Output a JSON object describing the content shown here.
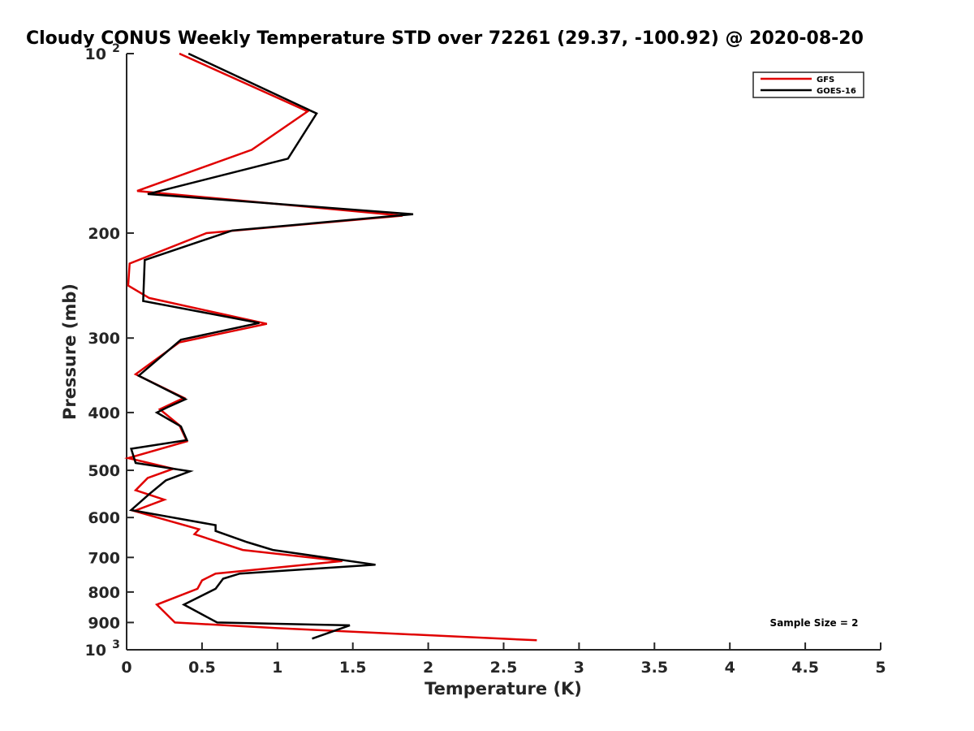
{
  "chart_data": {
    "type": "line",
    "title": "Cloudy CONUS Weekly Temperature STD over 72261 (29.37, -100.92) @ 2020-08-20",
    "xlabel": "Temperature (K)",
    "ylabel": "Pressure (mb)",
    "xlim": [
      0,
      5
    ],
    "ylim": [
      100,
      1000
    ],
    "y_scale": "log",
    "y_reversed": true,
    "x_ticks": [
      "0",
      "0.5",
      "1",
      "1.5",
      "2",
      "2.5",
      "3",
      "3.5",
      "4",
      "4.5",
      "5"
    ],
    "x_tick_values": [
      0,
      0.5,
      1,
      1.5,
      2,
      2.5,
      3,
      3.5,
      4,
      4.5,
      5
    ],
    "y_ticks": [
      {
        "value": 100,
        "base": "10",
        "exp": "2"
      },
      {
        "value": 200,
        "label": "200"
      },
      {
        "value": 300,
        "label": "300"
      },
      {
        "value": 400,
        "label": "400"
      },
      {
        "value": 500,
        "label": "500"
      },
      {
        "value": 600,
        "label": "600"
      },
      {
        "value": 700,
        "label": "700"
      },
      {
        "value": 800,
        "label": "800"
      },
      {
        "value": 900,
        "label": "900"
      },
      {
        "value": 1000,
        "base": "10",
        "exp": "3"
      }
    ],
    "grid": false,
    "legend_position": "top-right",
    "annotation": "Sample Size = 2",
    "series": [
      {
        "name": "GFS",
        "color": "#e00000",
        "points": [
          [
            0.35,
            100
          ],
          [
            1.2,
            125
          ],
          [
            0.83,
            145
          ],
          [
            0.07,
            170
          ],
          [
            1.83,
            187
          ],
          [
            0.53,
            200
          ],
          [
            0.02,
            225
          ],
          [
            0.01,
            245
          ],
          [
            0.15,
            257
          ],
          [
            0.93,
            284
          ],
          [
            0.35,
            305
          ],
          [
            0.06,
            345
          ],
          [
            0.38,
            378
          ],
          [
            0.22,
            395
          ],
          [
            0.35,
            420
          ],
          [
            0.4,
            447
          ],
          [
            0.01,
            477
          ],
          [
            0.31,
            497
          ],
          [
            0.14,
            515
          ],
          [
            0.06,
            540
          ],
          [
            0.25,
            560
          ],
          [
            0.05,
            585
          ],
          [
            0.48,
            628
          ],
          [
            0.45,
            640
          ],
          [
            0.77,
            680
          ],
          [
            1.43,
            710
          ],
          [
            0.59,
            745
          ],
          [
            0.5,
            765
          ],
          [
            0.47,
            790
          ],
          [
            0.2,
            840
          ],
          [
            0.32,
            900
          ],
          [
            1.0,
            920
          ],
          [
            2.72,
            964
          ]
        ]
      },
      {
        "name": "GOES-16",
        "color": "#000000",
        "points": [
          [
            0.41,
            100
          ],
          [
            1.26,
            126
          ],
          [
            1.07,
            150
          ],
          [
            0.14,
            172
          ],
          [
            1.9,
            186
          ],
          [
            0.7,
            198
          ],
          [
            0.12,
            222
          ],
          [
            0.11,
            260
          ],
          [
            0.88,
            283
          ],
          [
            0.36,
            302
          ],
          [
            0.08,
            347
          ],
          [
            0.39,
            380
          ],
          [
            0.27,
            392
          ],
          [
            0.2,
            400
          ],
          [
            0.36,
            422
          ],
          [
            0.4,
            445
          ],
          [
            0.03,
            460
          ],
          [
            0.06,
            486
          ],
          [
            0.42,
            502
          ],
          [
            0.26,
            520
          ],
          [
            0.15,
            548
          ],
          [
            0.03,
            583
          ],
          [
            0.59,
            618
          ],
          [
            0.59,
            632
          ],
          [
            0.8,
            660
          ],
          [
            0.97,
            680
          ],
          [
            1.65,
            720
          ],
          [
            0.75,
            745
          ],
          [
            0.64,
            760
          ],
          [
            0.59,
            790
          ],
          [
            0.38,
            840
          ],
          [
            0.6,
            900
          ],
          [
            1.48,
            910
          ],
          [
            1.23,
            958
          ]
        ]
      }
    ]
  }
}
